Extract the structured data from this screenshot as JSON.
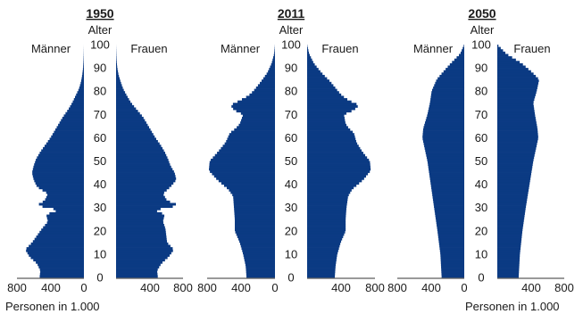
{
  "figure": {
    "age_label": "Alter",
    "men_label": "Männer",
    "women_label": "Frauen",
    "x_axis_note": "Personen in 1.000",
    "bar_color": "#0b3a83"
  },
  "chart_data": [
    {
      "type": "bar",
      "orientation": "horizontal-butterfly",
      "title": "1950",
      "ylabel": "Alter",
      "xlabel": "Personen in 1.000",
      "xlim": [
        0,
        800
      ],
      "ylim": [
        0,
        100
      ],
      "x_ticks": [
        "800",
        "400",
        "0",
        "400",
        "800"
      ],
      "y_ticks": [
        "0",
        "10",
        "20",
        "30",
        "40",
        "50",
        "60",
        "70",
        "80",
        "90",
        "100"
      ],
      "grid": false,
      "series": [
        {
          "name": "Männer",
          "ages": [
            0,
            3,
            6,
            9,
            12,
            15,
            18,
            21,
            24,
            27,
            29,
            31,
            33,
            36,
            39,
            42,
            45,
            48,
            51,
            54,
            57,
            60,
            63,
            66,
            69,
            72,
            75,
            78,
            81,
            84,
            87,
            90,
            93,
            96,
            100
          ],
          "values": [
            530,
            520,
            560,
            650,
            700,
            620,
            560,
            500,
            430,
            450,
            300,
            560,
            470,
            430,
            560,
            600,
            620,
            600,
            570,
            520,
            460,
            400,
            350,
            300,
            250,
            190,
            140,
            100,
            60,
            35,
            20,
            10,
            5,
            2,
            0
          ]
        },
        {
          "name": "Frauen",
          "ages": [
            0,
            3,
            6,
            9,
            12,
            15,
            18,
            21,
            24,
            27,
            29,
            31,
            33,
            36,
            39,
            42,
            45,
            48,
            51,
            54,
            57,
            60,
            63,
            66,
            69,
            72,
            75,
            78,
            81,
            84,
            87,
            90,
            93,
            96,
            100
          ],
          "values": [
            500,
            490,
            540,
            630,
            690,
            610,
            600,
            590,
            560,
            580,
            460,
            750,
            610,
            560,
            650,
            720,
            700,
            650,
            620,
            580,
            530,
            470,
            420,
            370,
            320,
            250,
            180,
            130,
            85,
            55,
            30,
            15,
            7,
            3,
            0
          ]
        }
      ]
    },
    {
      "type": "bar",
      "orientation": "horizontal-butterfly",
      "title": "2011",
      "ylabel": "Alter",
      "xlabel": "",
      "xlim": [
        0,
        800
      ],
      "ylim": [
        0,
        100
      ],
      "x_ticks": [
        "800",
        "400",
        "0",
        "400",
        "800"
      ],
      "y_ticks": [
        "0",
        "10",
        "20",
        "30",
        "40",
        "50",
        "60",
        "70",
        "80",
        "90",
        "100"
      ],
      "grid": false,
      "series": [
        {
          "name": "Männer",
          "ages": [
            0,
            5,
            10,
            15,
            20,
            25,
            30,
            35,
            38,
            42,
            46,
            50,
            54,
            58,
            62,
            64,
            66,
            68,
            70,
            72,
            74,
            76,
            78,
            80,
            84,
            88,
            92,
            96,
            100
          ],
          "values": [
            340,
            350,
            380,
            420,
            480,
            480,
            490,
            500,
            560,
            690,
            790,
            780,
            680,
            590,
            540,
            470,
            420,
            400,
            380,
            490,
            530,
            420,
            320,
            260,
            170,
            90,
            40,
            10,
            0
          ]
        },
        {
          "name": "Frauen",
          "ages": [
            0,
            5,
            10,
            15,
            20,
            25,
            30,
            35,
            38,
            42,
            46,
            50,
            54,
            58,
            62,
            64,
            66,
            68,
            70,
            72,
            74,
            76,
            78,
            80,
            84,
            88,
            92,
            96,
            100
          ],
          "values": [
            330,
            340,
            360,
            400,
            460,
            460,
            470,
            490,
            540,
            670,
            760,
            750,
            660,
            590,
            560,
            500,
            460,
            450,
            440,
            560,
            620,
            500,
            420,
            370,
            280,
            170,
            80,
            25,
            0
          ]
        }
      ]
    },
    {
      "type": "bar",
      "orientation": "horizontal-butterfly",
      "title": "2050",
      "ylabel": "Alter",
      "xlabel": "Personen in 1.000",
      "xlim": [
        0,
        800
      ],
      "ylim": [
        0,
        100
      ],
      "x_ticks": [
        "800",
        "400",
        "0",
        "400",
        "800"
      ],
      "y_ticks": [
        "0",
        "10",
        "20",
        "30",
        "40",
        "50",
        "60",
        "70",
        "80",
        "90",
        "100"
      ],
      "grid": false,
      "series": [
        {
          "name": "Männer",
          "ages": [
            0,
            10,
            20,
            30,
            40,
            50,
            55,
            60,
            64,
            70,
            75,
            80,
            85,
            88,
            92,
            96,
            100
          ],
          "values": [
            270,
            285,
            320,
            360,
            400,
            440,
            470,
            500,
            490,
            440,
            410,
            390,
            330,
            260,
            160,
            50,
            0
          ]
        },
        {
          "name": "Frauen",
          "ages": [
            0,
            10,
            20,
            30,
            40,
            50,
            55,
            60,
            64,
            70,
            75,
            80,
            85,
            88,
            92,
            96,
            100
          ],
          "values": [
            255,
            270,
            300,
            340,
            385,
            430,
            460,
            490,
            480,
            450,
            430,
            470,
            500,
            420,
            290,
            110,
            0
          ]
        }
      ]
    }
  ]
}
